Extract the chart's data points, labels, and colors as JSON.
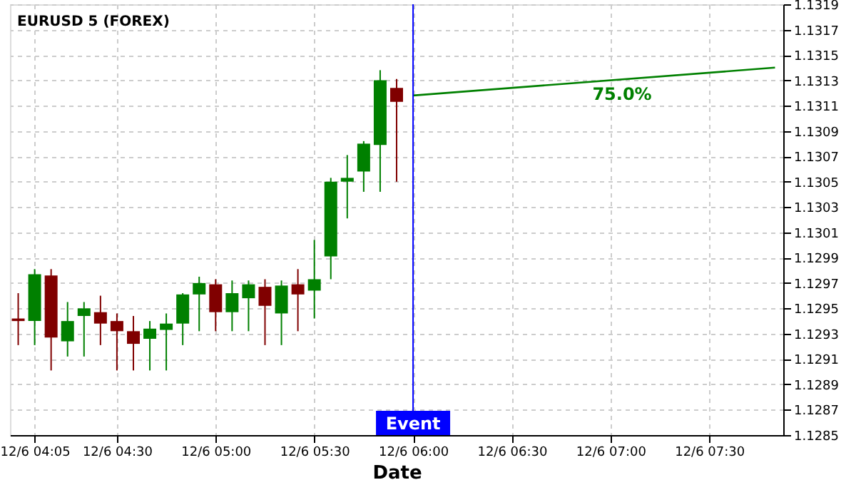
{
  "chart_data": {
    "type": "candlestick",
    "title": "EURUSD 5 (FOREX)",
    "xlabel": "Date",
    "categories": [
      null,
      "12/6 04:05",
      null,
      null,
      null,
      null,
      "12/6 04:30",
      null,
      null,
      null,
      null,
      null,
      "12/6 05:00",
      null,
      null,
      null,
      null,
      null,
      "12/6 05:30",
      null,
      null,
      null,
      null,
      null,
      "12/6 06:00",
      null,
      null,
      null,
      null,
      null,
      "12/6 06:30",
      null,
      null,
      null,
      null,
      null,
      "12/6 07:00",
      null,
      null,
      null,
      null,
      null,
      "12/6 07:30",
      null,
      null,
      null,
      null
    ],
    "ohlc": [
      [
        1.12942,
        1.12962,
        1.12921,
        1.1294
      ],
      [
        1.1294,
        1.12981,
        1.12921,
        1.12977
      ],
      [
        1.12976,
        1.12981,
        1.12901,
        1.12927
      ],
      [
        1.12924,
        1.12955,
        1.12912,
        1.1294
      ],
      [
        1.12944,
        1.12955,
        1.12912,
        1.1295
      ],
      [
        1.12947,
        1.1296,
        1.12921,
        1.12938
      ],
      [
        1.1294,
        1.12946,
        1.12901,
        1.12932
      ],
      [
        1.12932,
        1.12944,
        1.12901,
        1.12922
      ],
      [
        1.12926,
        1.1294,
        1.12901,
        1.12934
      ],
      [
        1.12933,
        1.12946,
        1.12901,
        1.12938
      ],
      [
        1.12938,
        1.12962,
        1.12921,
        1.12961
      ],
      [
        1.12961,
        1.12975,
        1.12932,
        1.1297
      ],
      [
        1.12969,
        1.12973,
        1.12932,
        1.12947
      ],
      [
        1.12947,
        1.12972,
        1.12932,
        1.12962
      ],
      [
        1.12958,
        1.12972,
        1.12932,
        1.12969
      ],
      [
        1.12967,
        1.12973,
        1.12921,
        1.12952
      ],
      [
        1.12946,
        1.12972,
        1.12921,
        1.12968
      ],
      [
        1.12969,
        1.12981,
        1.12932,
        1.12961
      ],
      [
        1.12964,
        1.13004,
        1.12942,
        1.12973
      ],
      [
        1.12991,
        1.13053,
        1.12973,
        1.1305
      ],
      [
        1.1305,
        1.13071,
        1.13021,
        1.13053
      ],
      [
        1.13058,
        1.13082,
        1.13042,
        1.1308
      ],
      [
        1.13079,
        1.13138,
        1.13042,
        1.1313
      ],
      [
        1.13124,
        1.13131,
        1.1305,
        1.13113
      ],
      null,
      null,
      null,
      null,
      null,
      null,
      null,
      null,
      null,
      null,
      null,
      null,
      null,
      null,
      null,
      null,
      null,
      null,
      null,
      null,
      null,
      null,
      null
    ],
    "colors": [
      "#800000",
      "#008000",
      "#800000",
      "#008000",
      "#008000",
      "#800000",
      "#800000",
      "#800000",
      "#008000",
      "#008000",
      "#008000",
      "#008000",
      "#800000",
      "#008000",
      "#008000",
      "#800000",
      "#008000",
      "#800000",
      "#008000",
      "#008000",
      "#008000",
      "#008000",
      "#008000",
      "#800000",
      null,
      null,
      null,
      null,
      null,
      null,
      null,
      null,
      null,
      null,
      null,
      null,
      null,
      null,
      null,
      null,
      null,
      null,
      null,
      null,
      null,
      null,
      null
    ],
    "series": [
      {
        "type": "line",
        "color": "#008000",
        "values": [
          null,
          null,
          null,
          null,
          null,
          null,
          null,
          null,
          null,
          null,
          null,
          null,
          null,
          null,
          null,
          null,
          null,
          null,
          null,
          null,
          null,
          null,
          null,
          null,
          1.13118,
          null,
          null,
          null,
          null,
          null,
          null,
          null,
          null,
          null,
          null,
          null,
          null,
          null,
          null,
          null,
          null,
          null,
          null,
          null,
          null,
          null,
          1.1314
        ]
      }
    ],
    "annotations": [
      "75.0%"
    ],
    "ref_lines": [
      {
        "axis": "x",
        "value": "12/6 06:00",
        "label": "Event",
        "color": "#0000ff"
      }
    ],
    "ylim": [
      1.1285,
      1.1319
    ],
    "yticks": [
      1.1285,
      1.1287,
      1.1289,
      1.1291,
      1.1293,
      1.1295,
      1.1297,
      1.1299,
      1.1301,
      1.1303,
      1.1305,
      1.1307,
      1.1309,
      1.1311,
      1.1313,
      1.1315,
      1.1317,
      1.1319
    ],
    "grid": true
  }
}
